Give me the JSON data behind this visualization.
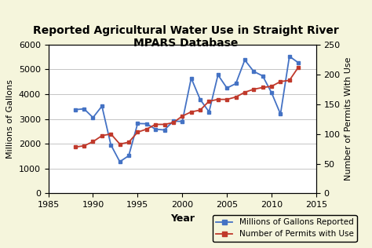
{
  "title": "Reported Agricultural Water Use in Straight River\nMPARS Database",
  "xlabel": "Year",
  "ylabel_left": "Millions of Gallons",
  "ylabel_right": "Number of Permits With Use",
  "legend_blue": "Millions of Gallons Reported",
  "legend_red": "Number of Permits with Use",
  "blue_years": [
    1988,
    1989,
    1990,
    1991,
    1992,
    1993,
    1994,
    1995,
    1996,
    1997,
    1998,
    1999,
    2000,
    2001,
    2002,
    2003,
    2004,
    2005,
    2006,
    2007,
    2008,
    2009,
    2010,
    2011,
    2012,
    2013
  ],
  "blue_values": [
    3380,
    3410,
    3060,
    3520,
    1960,
    1280,
    1520,
    2820,
    2810,
    2590,
    2560,
    2920,
    2900,
    4650,
    3790,
    3290,
    4780,
    4250,
    4430,
    5380,
    4920,
    4740,
    4060,
    3200,
    5530,
    5270
  ],
  "red_years": [
    1988,
    1989,
    1990,
    1991,
    1992,
    1993,
    1994,
    1995,
    1996,
    1997,
    1998,
    1999,
    2000,
    2001,
    2002,
    2003,
    2004,
    2005,
    2006,
    2007,
    2008,
    2009,
    2010,
    2011,
    2012,
    2013
  ],
  "red_values": [
    78,
    80,
    87,
    97,
    100,
    83,
    86,
    103,
    108,
    116,
    116,
    119,
    130,
    137,
    140,
    155,
    158,
    158,
    162,
    170,
    175,
    178,
    180,
    188,
    190,
    212
  ],
  "xlim": [
    1985,
    2015
  ],
  "xticks": [
    1985,
    1990,
    1995,
    2000,
    2005,
    2010,
    2015
  ],
  "ylim_left": [
    0,
    6000
  ],
  "yticks_left": [
    0,
    1000,
    2000,
    3000,
    4000,
    5000,
    6000
  ],
  "ylim_right": [
    0,
    250
  ],
  "yticks_right": [
    0,
    50,
    100,
    150,
    200,
    250
  ],
  "blue_color": "#4472C4",
  "red_color": "#C0392B",
  "bg_color": "#F5F5DC",
  "plot_bg_color": "#FFFFFF",
  "grid_color": "#BBBBBB",
  "title_fontsize": 10,
  "label_fontsize": 9,
  "tick_fontsize": 8,
  "legend_fontsize": 7.5
}
